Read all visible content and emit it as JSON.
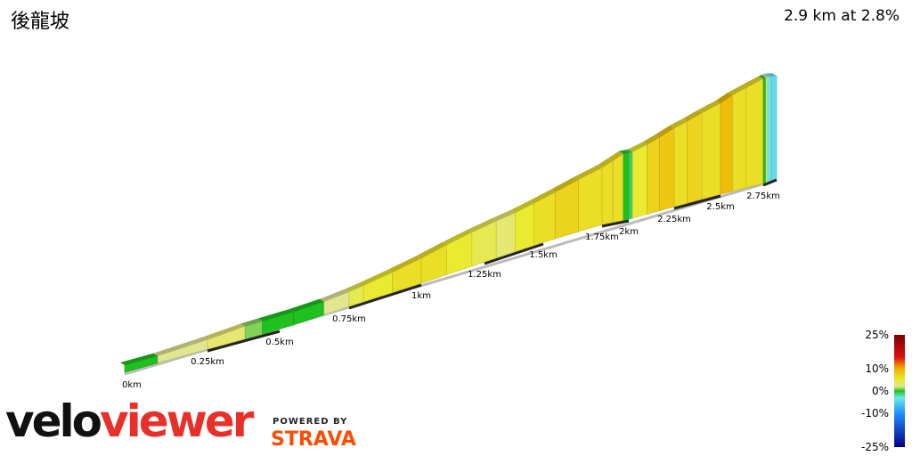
{
  "header": {
    "title": "後龍坡",
    "summary": "2.9 km at 2.8%"
  },
  "branding": {
    "logo_part1": "velo",
    "logo_part2": "viewer",
    "powered_by": "POWERED BY",
    "strava": "STRAVA"
  },
  "chart_data": {
    "type": "area",
    "subtype": "3d-elevation-profile",
    "x_unit": "km",
    "total_distance_km": 2.9,
    "average_gradient_pct": 2.8,
    "distance_labels": [
      {
        "km": 0,
        "text": "0km"
      },
      {
        "km": 0.25,
        "text": "0.25km"
      },
      {
        "km": 0.5,
        "text": "0.5km"
      },
      {
        "km": 0.75,
        "text": "0.75km"
      },
      {
        "km": 1,
        "text": "1km"
      },
      {
        "km": 1.25,
        "text": "1.25km"
      },
      {
        "km": 1.5,
        "text": "1.5km"
      },
      {
        "km": 1.75,
        "text": "1.75km"
      },
      {
        "km": 2,
        "text": "2km"
      },
      {
        "km": 2.25,
        "text": "2.25km"
      },
      {
        "km": 2.5,
        "text": "2.5km"
      },
      {
        "km": 2.75,
        "text": "2.75km"
      }
    ],
    "segments": [
      {
        "from": 0.0,
        "to": 0.1,
        "gradient": 0
      },
      {
        "from": 0.1,
        "to": 0.25,
        "gradient": 2
      },
      {
        "from": 0.25,
        "to": 0.38,
        "gradient": 3
      },
      {
        "from": 0.38,
        "to": 0.44,
        "gradient": 1
      },
      {
        "from": 0.44,
        "to": 0.55,
        "gradient": 0
      },
      {
        "from": 0.55,
        "to": 0.66,
        "gradient": 0
      },
      {
        "from": 0.66,
        "to": 0.75,
        "gradient": 2
      },
      {
        "from": 0.75,
        "to": 0.8,
        "gradient": 4
      },
      {
        "from": 0.8,
        "to": 0.9,
        "gradient": 5
      },
      {
        "from": 0.9,
        "to": 1.0,
        "gradient": 6
      },
      {
        "from": 1.0,
        "to": 1.1,
        "gradient": 6
      },
      {
        "from": 1.1,
        "to": 1.2,
        "gradient": 5
      },
      {
        "from": 1.2,
        "to": 1.3,
        "gradient": 4
      },
      {
        "from": 1.3,
        "to": 1.38,
        "gradient": 3
      },
      {
        "from": 1.38,
        "to": 1.46,
        "gradient": 5
      },
      {
        "from": 1.46,
        "to": 1.55,
        "gradient": 6
      },
      {
        "from": 1.55,
        "to": 1.65,
        "gradient": 7
      },
      {
        "from": 1.65,
        "to": 1.75,
        "gradient": 6
      },
      {
        "from": 1.75,
        "to": 1.85,
        "gradient": 6
      },
      {
        "from": 1.85,
        "to": 1.95,
        "gradient": 6
      },
      {
        "from": 1.95,
        "to": 2.0,
        "gradient": 0
      },
      {
        "from": 2.0,
        "to": 2.02,
        "gradient": -1
      },
      {
        "from": 2.02,
        "to": 2.1,
        "gradient": 5
      },
      {
        "from": 2.1,
        "to": 2.17,
        "gradient": 7
      },
      {
        "from": 2.17,
        "to": 2.25,
        "gradient": 8
      },
      {
        "from": 2.25,
        "to": 2.32,
        "gradient": 6
      },
      {
        "from": 2.32,
        "to": 2.4,
        "gradient": 7
      },
      {
        "from": 2.4,
        "to": 2.5,
        "gradient": 6
      },
      {
        "from": 2.5,
        "to": 2.57,
        "gradient": 9
      },
      {
        "from": 2.57,
        "to": 2.65,
        "gradient": 6
      },
      {
        "from": 2.65,
        "to": 2.75,
        "gradient": 6
      },
      {
        "from": 2.75,
        "to": 2.78,
        "gradient": 0
      },
      {
        "from": 2.78,
        "to": 2.8,
        "gradient": 2
      },
      {
        "from": 2.8,
        "to": 2.84,
        "gradient": -3
      },
      {
        "from": 2.84,
        "to": 2.9,
        "gradient": -4
      }
    ],
    "legend": {
      "labels": [
        "25%",
        "10%",
        "0%",
        "-10%",
        "-25%"
      ],
      "stops": [
        {
          "pct": 25,
          "color": "#7a0000"
        },
        {
          "pct": 15,
          "color": "#e01010"
        },
        {
          "pct": 10,
          "color": "#f0b000"
        },
        {
          "pct": 5,
          "color": "#eaea30"
        },
        {
          "pct": 2,
          "color": "#e2e690"
        },
        {
          "pct": 0,
          "color": "#20c020"
        },
        {
          "pct": -3,
          "color": "#70e8e8"
        },
        {
          "pct": -10,
          "color": "#2090ff"
        },
        {
          "pct": -25,
          "color": "#000080"
        }
      ]
    }
  }
}
